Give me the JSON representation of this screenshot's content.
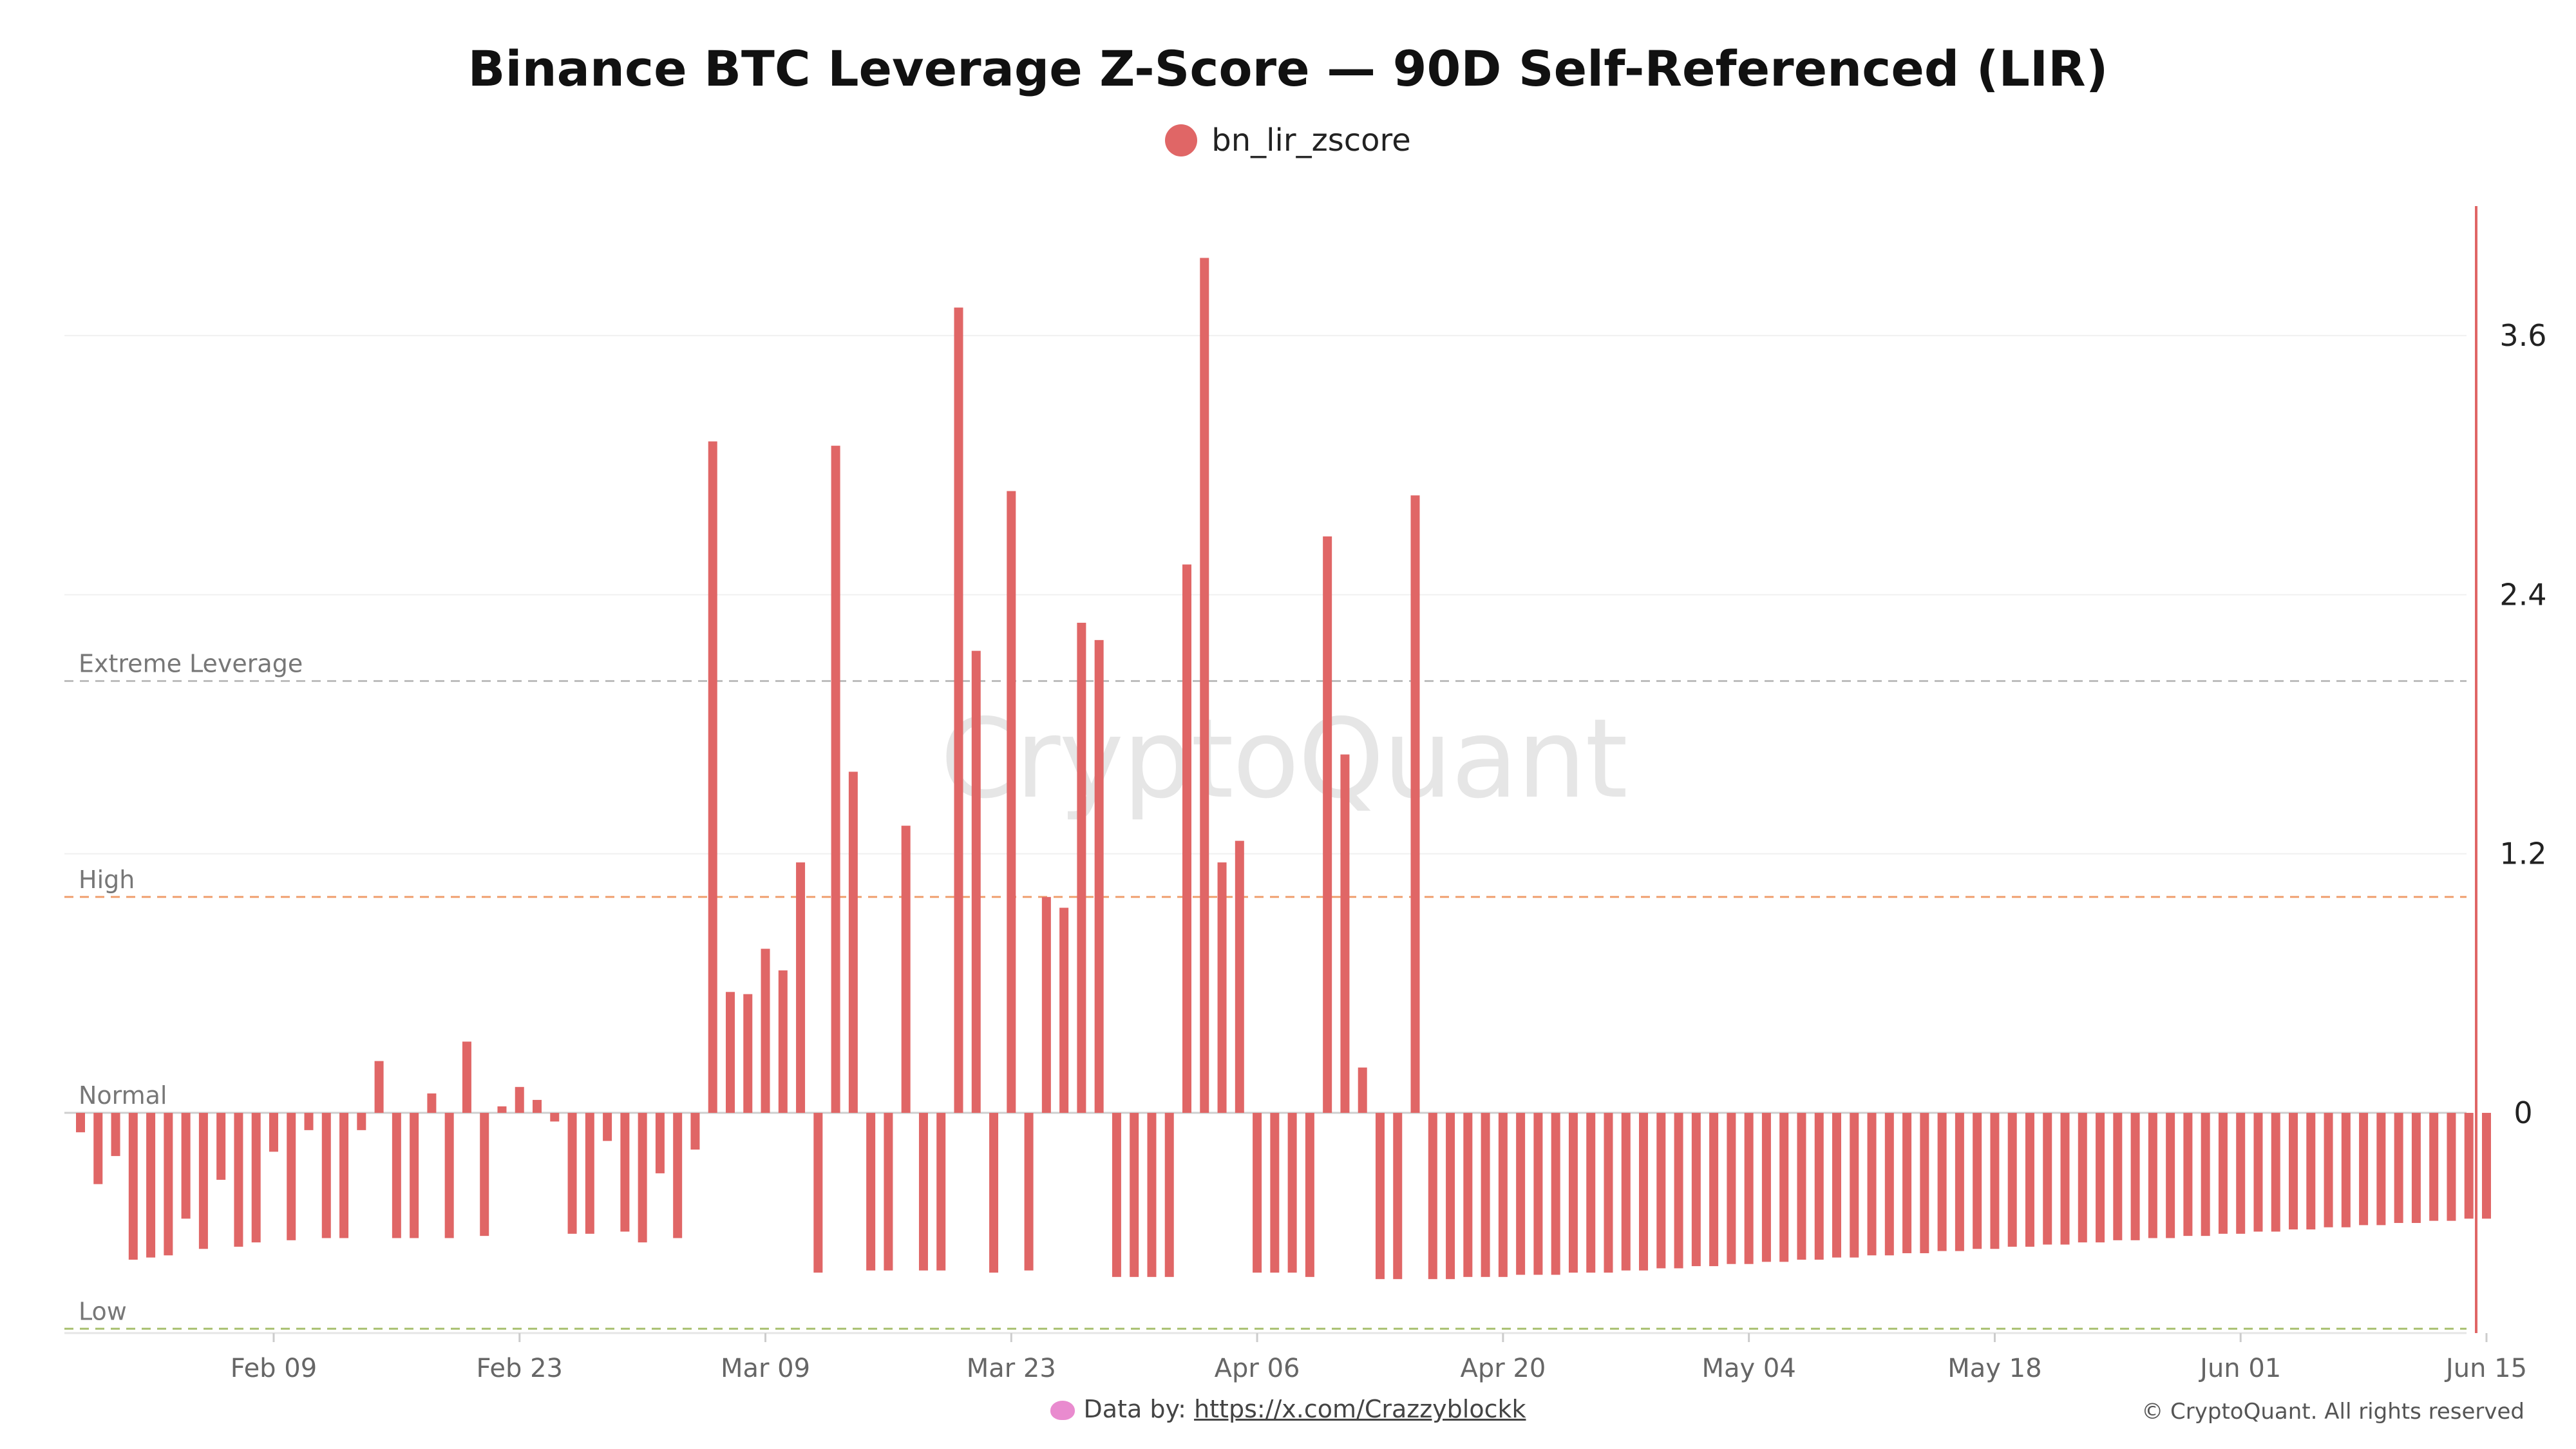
{
  "chart_data": {
    "type": "bar",
    "title": "Binance BTC Leverage Z-Score — 90D Self-Referenced (LIR)",
    "series": [
      {
        "name": "bn_lir_zscore",
        "color": "#e06666",
        "values": [
          -0.09,
          -0.33,
          -0.2,
          -0.68,
          -0.67,
          -0.66,
          -0.49,
          -0.63,
          -0.31,
          -0.62,
          -0.6,
          -0.18,
          -0.59,
          -0.08,
          -0.58,
          -0.58,
          -0.08,
          0.24,
          -0.58,
          -0.58,
          0.09,
          -0.58,
          0.33,
          -0.57,
          0.03,
          0.12,
          0.06,
          -0.04,
          -0.56,
          -0.56,
          -0.13,
          -0.55,
          -0.6,
          -0.28,
          -0.58,
          -0.17,
          3.11,
          0.56,
          0.55,
          0.76,
          0.66,
          1.16,
          -0.74,
          3.09,
          1.58,
          -0.73,
          -0.73,
          1.33,
          -0.73,
          -0.73,
          3.73,
          2.14,
          -0.74,
          2.88,
          -0.73,
          1.0,
          0.95,
          2.27,
          2.19,
          -0.76,
          -0.76,
          -0.76,
          -0.76,
          2.54,
          3.96,
          1.16,
          1.26,
          -0.74,
          -0.74,
          -0.74,
          -0.76,
          2.67,
          1.66,
          0.21,
          -0.77,
          -0.77,
          2.86,
          -0.77,
          -0.77,
          -0.76,
          -0.76,
          -0.76,
          -0.75,
          -0.75,
          -0.75,
          -0.74,
          -0.74,
          -0.74,
          -0.73,
          -0.73,
          -0.72,
          -0.72,
          -0.71,
          -0.71,
          -0.7,
          -0.7,
          -0.69,
          -0.69,
          -0.68,
          -0.68,
          -0.67,
          -0.67,
          -0.66,
          -0.66,
          -0.65,
          -0.65,
          -0.64,
          -0.64,
          -0.63,
          -0.63,
          -0.62,
          -0.62,
          -0.61,
          -0.61,
          -0.6,
          -0.6,
          -0.59,
          -0.59,
          -0.58,
          -0.58,
          -0.57,
          -0.57,
          -0.56,
          -0.56,
          -0.55,
          -0.55,
          -0.54,
          -0.54,
          -0.53,
          -0.53,
          -0.52,
          -0.52,
          -0.51,
          -0.51,
          -0.5,
          -0.5,
          -0.49,
          -0.49
        ]
      }
    ],
    "x_start": "2026-01-29",
    "x_ticks": [
      "Feb 09",
      "Feb 23",
      "Mar 09",
      "Mar 23",
      "Apr 06",
      "Apr 20",
      "May 04",
      "May 18",
      "Jun 01",
      "Jun 15"
    ],
    "x_tick_dates": [
      "2026-02-09",
      "2026-02-23",
      "2026-03-09",
      "2026-03-23",
      "2026-04-06",
      "2026-04-20",
      "2026-05-04",
      "2026-05-18",
      "2026-06-01",
      "2026-06-15"
    ],
    "y_ticks": [
      "0",
      "1.2",
      "2.4",
      "3.6"
    ],
    "y_tick_values": [
      0,
      1.2,
      2.4,
      3.6
    ],
    "ylim": [
      -1.02,
      4.2
    ],
    "y_axis_side": "right",
    "thresholds": [
      {
        "label": "Extreme Leverage",
        "value": 2.0,
        "color": "#bdbdbd"
      },
      {
        "label": "High",
        "value": 1.0,
        "color": "#f0a070"
      },
      {
        "label": "Normal",
        "value": 0.0,
        "color": "#cfcfcf"
      },
      {
        "label": "Low",
        "value": -1.0,
        "color": "#a8c070"
      }
    ],
    "grid": true,
    "legend_position": "top-center"
  },
  "legend": {
    "label": "bn_lir_zscore",
    "color": "#e06666"
  },
  "watermark": "CryptoQuant",
  "footer": {
    "data_prefix": "Data by:",
    "data_link": "https://x.com/Crazzyblockk",
    "copyright": "© CryptoQuant. All rights reserved"
  }
}
